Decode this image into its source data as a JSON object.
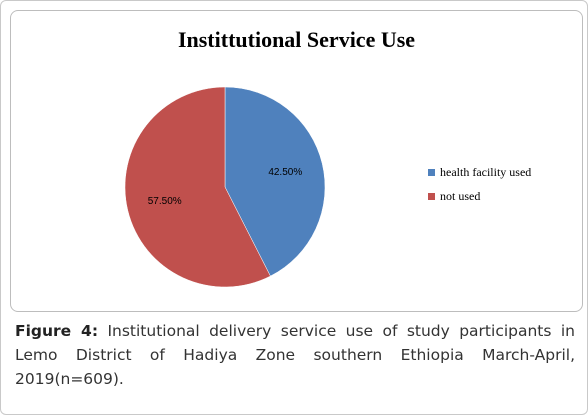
{
  "chart_data": {
    "type": "pie",
    "title": "Instittutional Service Use",
    "slices": [
      {
        "label": "health facility used",
        "value": 42.5,
        "display": "42.50%",
        "color": "#4f81bd"
      },
      {
        "label": "not used",
        "value": 57.5,
        "display": "57.50%",
        "color": "#c0504d"
      }
    ],
    "legend_position": "right"
  },
  "caption": {
    "lead": "Figure 4:",
    "text": " Institutional delivery service use of study participants in Lemo District of Hadiya Zone southern Ethiopia March-April, 2019(n=609)."
  }
}
